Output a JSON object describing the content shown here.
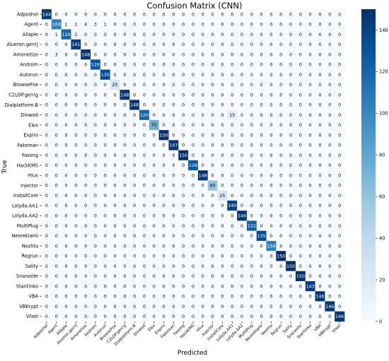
{
  "chart_data": {
    "type": "heatmap",
    "title": "Confusion Matrix (CNN)",
    "xlabel": "Predicted",
    "ylabel": "True",
    "labels": [
      "Adposhel",
      "Agent",
      "Allaple",
      "Alueron.gen!J",
      "Amonetize",
      "Androm",
      "Autorun",
      "BrowseFox",
      "C2LOP.gen!g",
      "Dialplatform.B",
      "Dinwod",
      "Elex",
      "Expiro",
      "Fakerean",
      "Fasong",
      "HackKMS",
      "Hlux",
      "Injector",
      "InstallCore",
      "Lolyda.AA1",
      "Lolyda.AA2",
      "MultiPlug",
      "Neoreklami",
      "Neshta",
      "Regrun",
      "Sality",
      "Snarasite",
      "Stantinko",
      "VBA",
      "VBKrypt",
      "Vilsel"
    ],
    "matrix": [
      [
        144,
        0,
        0,
        0,
        0,
        0,
        0,
        0,
        0,
        0,
        0,
        0,
        0,
        0,
        0,
        0,
        0,
        0,
        0,
        0,
        0,
        0,
        0,
        0,
        0,
        0,
        0,
        0,
        0,
        0,
        0
      ],
      [
        0,
        104,
        1,
        1,
        4,
        3,
        1,
        0,
        0,
        0,
        0,
        0,
        0,
        0,
        0,
        0,
        0,
        0,
        0,
        0,
        0,
        0,
        0,
        0,
        0,
        0,
        0,
        0,
        0,
        0,
        0
      ],
      [
        0,
        1,
        120,
        2,
        0,
        0,
        0,
        0,
        0,
        0,
        0,
        0,
        0,
        0,
        0,
        0,
        0,
        0,
        0,
        0,
        0,
        0,
        0,
        0,
        0,
        0,
        0,
        0,
        0,
        0,
        0
      ],
      [
        0,
        0,
        0,
        141,
        0,
        0,
        0,
        0,
        0,
        0,
        0,
        0,
        0,
        0,
        0,
        0,
        0,
        0,
        0,
        0,
        0,
        0,
        0,
        0,
        0,
        0,
        0,
        0,
        0,
        0,
        0
      ],
      [
        0,
        3,
        0,
        0,
        148,
        0,
        0,
        0,
        0,
        0,
        0,
        0,
        0,
        0,
        0,
        0,
        0,
        0,
        0,
        0,
        0,
        0,
        0,
        0,
        0,
        0,
        0,
        0,
        0,
        0,
        0
      ],
      [
        0,
        0,
        0,
        0,
        0,
        129,
        0,
        0,
        0,
        0,
        0,
        0,
        0,
        0,
        0,
        0,
        0,
        0,
        0,
        0,
        0,
        0,
        0,
        0,
        0,
        0,
        0,
        0,
        0,
        0,
        0
      ],
      [
        0,
        0,
        0,
        0,
        0,
        0,
        135,
        0,
        0,
        0,
        0,
        0,
        0,
        0,
        0,
        0,
        0,
        0,
        0,
        0,
        0,
        0,
        0,
        0,
        0,
        0,
        0,
        0,
        0,
        0,
        0
      ],
      [
        0,
        0,
        0,
        0,
        0,
        0,
        0,
        25,
        0,
        0,
        0,
        0,
        0,
        0,
        0,
        0,
        0,
        0,
        0,
        0,
        0,
        0,
        0,
        0,
        0,
        0,
        0,
        0,
        0,
        0,
        0
      ],
      [
        0,
        0,
        0,
        0,
        0,
        0,
        0,
        0,
        148,
        0,
        0,
        0,
        0,
        0,
        0,
        0,
        0,
        0,
        0,
        0,
        0,
        0,
        0,
        0,
        0,
        0,
        0,
        0,
        0,
        0,
        0
      ],
      [
        0,
        0,
        0,
        0,
        0,
        0,
        0,
        0,
        0,
        148,
        0,
        0,
        0,
        0,
        0,
        0,
        0,
        0,
        0,
        0,
        0,
        0,
        0,
        0,
        0,
        0,
        0,
        0,
        0,
        0,
        0
      ],
      [
        0,
        0,
        0,
        0,
        0,
        0,
        0,
        0,
        0,
        0,
        120,
        0,
        0,
        0,
        0,
        0,
        0,
        0,
        0,
        15,
        0,
        0,
        0,
        0,
        0,
        0,
        0,
        0,
        0,
        0,
        0
      ],
      [
        0,
        0,
        0,
        0,
        0,
        0,
        0,
        0,
        0,
        0,
        0,
        75,
        0,
        0,
        0,
        0,
        0,
        0,
        0,
        0,
        0,
        0,
        0,
        0,
        0,
        0,
        0,
        0,
        0,
        0,
        0
      ],
      [
        0,
        0,
        0,
        0,
        0,
        0,
        0,
        0,
        0,
        0,
        0,
        0,
        150,
        0,
        0,
        0,
        0,
        0,
        0,
        0,
        0,
        0,
        0,
        0,
        0,
        0,
        0,
        0,
        0,
        0,
        0
      ],
      [
        0,
        0,
        0,
        0,
        0,
        0,
        0,
        0,
        0,
        0,
        0,
        0,
        0,
        147,
        0,
        0,
        0,
        0,
        0,
        0,
        0,
        0,
        0,
        0,
        0,
        0,
        0,
        0,
        0,
        0,
        0
      ],
      [
        0,
        0,
        0,
        0,
        0,
        0,
        0,
        0,
        0,
        0,
        0,
        0,
        0,
        0,
        150,
        0,
        0,
        0,
        0,
        0,
        0,
        0,
        0,
        0,
        0,
        0,
        0,
        0,
        0,
        0,
        0
      ],
      [
        0,
        0,
        0,
        0,
        0,
        0,
        0,
        0,
        0,
        0,
        0,
        0,
        0,
        0,
        0,
        128,
        0,
        0,
        0,
        0,
        0,
        0,
        0,
        0,
        0,
        0,
        0,
        0,
        0,
        0,
        0
      ],
      [
        0,
        0,
        0,
        0,
        0,
        0,
        0,
        0,
        0,
        0,
        0,
        0,
        0,
        0,
        0,
        0,
        148,
        0,
        0,
        0,
        0,
        0,
        0,
        0,
        0,
        0,
        0,
        0,
        0,
        0,
        0
      ],
      [
        0,
        0,
        0,
        0,
        0,
        0,
        0,
        0,
        0,
        0,
        0,
        0,
        0,
        0,
        0,
        0,
        0,
        60,
        0,
        0,
        0,
        0,
        0,
        0,
        0,
        0,
        0,
        0,
        0,
        0,
        0
      ],
      [
        0,
        0,
        0,
        0,
        0,
        0,
        0,
        0,
        0,
        0,
        0,
        0,
        0,
        0,
        0,
        0,
        0,
        0,
        25,
        0,
        0,
        0,
        0,
        0,
        0,
        0,
        0,
        0,
        0,
        0,
        0
      ],
      [
        0,
        0,
        0,
        0,
        0,
        0,
        0,
        0,
        0,
        0,
        0,
        0,
        0,
        0,
        0,
        0,
        0,
        0,
        0,
        140,
        0,
        0,
        0,
        0,
        0,
        0,
        0,
        0,
        0,
        0,
        0
      ],
      [
        0,
        0,
        0,
        0,
        0,
        0,
        0,
        0,
        0,
        0,
        0,
        0,
        0,
        0,
        0,
        0,
        0,
        0,
        0,
        0,
        146,
        0,
        0,
        0,
        0,
        0,
        0,
        0,
        0,
        0,
        0
      ],
      [
        0,
        0,
        0,
        0,
        0,
        0,
        0,
        0,
        0,
        0,
        0,
        0,
        0,
        0,
        0,
        0,
        0,
        0,
        0,
        0,
        0,
        122,
        0,
        0,
        0,
        0,
        0,
        0,
        0,
        0,
        0
      ],
      [
        0,
        0,
        0,
        0,
        0,
        0,
        0,
        0,
        0,
        0,
        0,
        0,
        0,
        0,
        0,
        0,
        0,
        0,
        0,
        0,
        0,
        0,
        135,
        0,
        0,
        0,
        0,
        0,
        0,
        0,
        0
      ],
      [
        0,
        0,
        0,
        0,
        0,
        0,
        0,
        0,
        0,
        0,
        0,
        0,
        0,
        0,
        0,
        0,
        0,
        0,
        0,
        0,
        0,
        0,
        0,
        104,
        0,
        0,
        0,
        0,
        0,
        0,
        0
      ],
      [
        0,
        0,
        0,
        0,
        0,
        0,
        0,
        0,
        0,
        0,
        0,
        0,
        0,
        0,
        0,
        0,
        0,
        0,
        0,
        0,
        0,
        0,
        0,
        0,
        150,
        0,
        0,
        0,
        0,
        0,
        0
      ],
      [
        0,
        0,
        0,
        0,
        0,
        0,
        0,
        0,
        0,
        0,
        0,
        0,
        0,
        0,
        0,
        0,
        0,
        0,
        0,
        0,
        0,
        0,
        0,
        0,
        0,
        150,
        0,
        0,
        0,
        0,
        0
      ],
      [
        0,
        0,
        0,
        0,
        0,
        0,
        0,
        0,
        0,
        0,
        0,
        0,
        0,
        0,
        0,
        0,
        0,
        0,
        0,
        0,
        0,
        0,
        0,
        0,
        0,
        0,
        150,
        0,
        0,
        0,
        0
      ],
      [
        0,
        0,
        0,
        0,
        0,
        0,
        0,
        0,
        0,
        0,
        0,
        0,
        0,
        0,
        0,
        0,
        0,
        0,
        0,
        0,
        0,
        0,
        0,
        0,
        0,
        0,
        0,
        143,
        0,
        0,
        0
      ],
      [
        0,
        0,
        0,
        0,
        0,
        0,
        0,
        0,
        0,
        0,
        0,
        0,
        0,
        0,
        0,
        0,
        0,
        0,
        0,
        0,
        0,
        0,
        0,
        0,
        0,
        0,
        0,
        0,
        146,
        0,
        0
      ],
      [
        0,
        0,
        0,
        0,
        0,
        0,
        0,
        0,
        0,
        0,
        0,
        0,
        0,
        0,
        0,
        0,
        0,
        0,
        0,
        0,
        0,
        0,
        0,
        0,
        0,
        0,
        0,
        0,
        0,
        146,
        0
      ],
      [
        0,
        0,
        0,
        0,
        0,
        0,
        0,
        0,
        0,
        0,
        0,
        0,
        0,
        0,
        0,
        0,
        0,
        0,
        0,
        0,
        0,
        0,
        0,
        0,
        0,
        0,
        0,
        0,
        0,
        0,
        146
      ]
    ],
    "colorbar": {
      "min": 0,
      "max": 150,
      "ticks": [
        0,
        20,
        40,
        60,
        80,
        100,
        120,
        140
      ]
    },
    "colormap": [
      "#f7fbff",
      "#deebf7",
      "#c6dbef",
      "#9ecae1",
      "#6baed6",
      "#4292c6",
      "#2171b5",
      "#08519c",
      "#08306b"
    ]
  }
}
